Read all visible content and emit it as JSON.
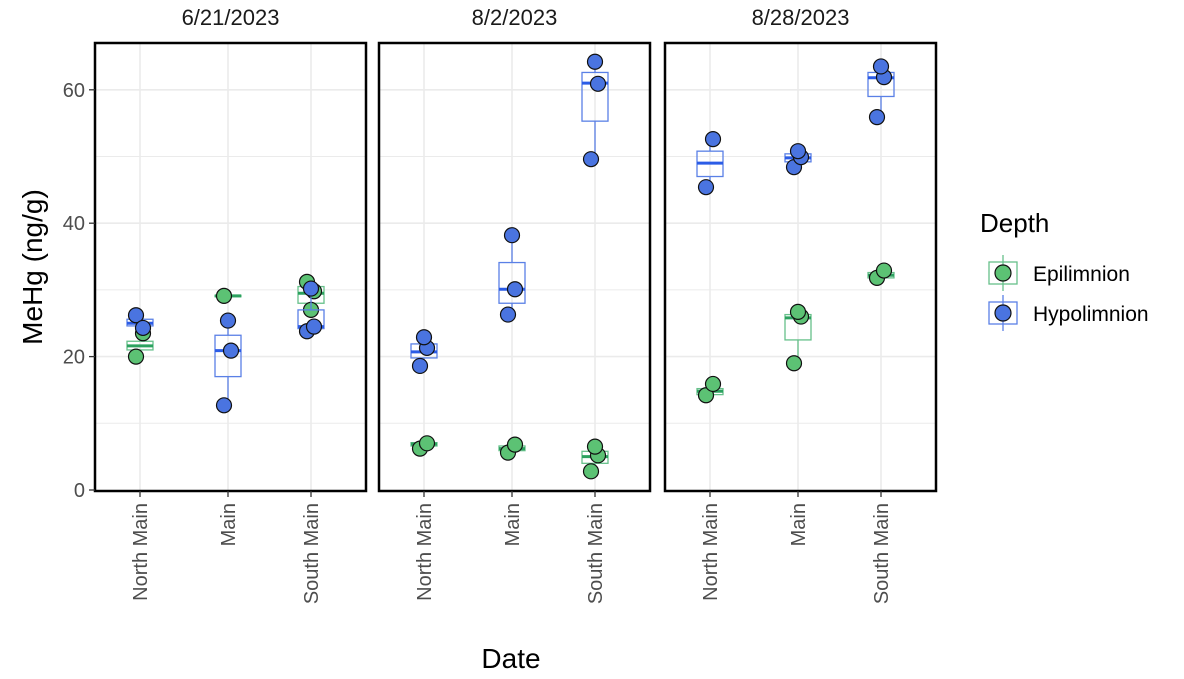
{
  "chart_data": {
    "type": "box",
    "xlabel": "Date",
    "ylabel": "MeHg (ng/g)",
    "ylim": [
      0,
      67
    ],
    "yticks": [
      0,
      20,
      40,
      60
    ],
    "grid": true,
    "categories": [
      "North Main",
      "Main",
      "South Main"
    ],
    "facets": [
      "6/21/2023",
      "8/2/2023",
      "8/28/2023"
    ],
    "legend": {
      "title": "Depth",
      "position": "right",
      "entries": [
        "Epilimnion",
        "Hypolimnion"
      ]
    },
    "series": [
      {
        "name": "Epilimnion",
        "color": "#2ca25f",
        "box_stroke": "#66c08a",
        "point_fill": "#5cc274",
        "groups": [
          {
            "facet": "6/21/2023",
            "category": "North Main",
            "box": [
              21.0,
              21.6,
              22.3
            ],
            "points": [
              20.0,
              23.5
            ]
          },
          {
            "facet": "6/21/2023",
            "category": "Main",
            "box": [
              29.0,
              29.1,
              29.2
            ],
            "points": [
              29.1
            ]
          },
          {
            "facet": "6/21/2023",
            "category": "South Main",
            "box": [
              28.0,
              29.5,
              30.5
            ],
            "points": [
              31.2,
              29.8,
              27.0
            ]
          },
          {
            "facet": "8/2/2023",
            "category": "North Main",
            "box": [
              6.6,
              6.9,
              7.1
            ],
            "points": [
              6.2,
              7.0
            ]
          },
          {
            "facet": "8/2/2023",
            "category": "Main",
            "box": [
              5.9,
              6.2,
              6.6
            ],
            "points": [
              5.6,
              6.8
            ]
          },
          {
            "facet": "8/2/2023",
            "category": "South Main",
            "box": [
              4.0,
              5.0,
              5.8
            ],
            "points": [
              2.8,
              5.2,
              6.5
            ]
          },
          {
            "facet": "8/28/2023",
            "category": "North Main",
            "box": [
              14.3,
              14.8,
              15.2
            ],
            "points": [
              14.2,
              15.9
            ]
          },
          {
            "facet": "8/28/2023",
            "category": "Main",
            "box": [
              22.5,
              25.8,
              26.3
            ],
            "points": [
              19.0,
              26.0,
              26.7
            ]
          },
          {
            "facet": "8/28/2023",
            "category": "South Main",
            "box": [
              31.8,
              32.2,
              32.6
            ],
            "points": [
              31.8,
              32.9
            ]
          }
        ]
      },
      {
        "name": "Hypolimnion",
        "color": "#2b5ce6",
        "box_stroke": "#5a80e6",
        "point_fill": "#4a74e0",
        "groups": [
          {
            "facet": "6/21/2023",
            "category": "North Main",
            "box": [
              24.6,
              25.0,
              25.6
            ],
            "points": [
              26.2,
              24.3
            ]
          },
          {
            "facet": "6/21/2023",
            "category": "Main",
            "box": [
              17.0,
              20.9,
              23.2
            ],
            "points": [
              12.7,
              20.9,
              25.4
            ]
          },
          {
            "facet": "6/21/2023",
            "category": "South Main",
            "box": [
              24.2,
              24.5,
              27.0
            ],
            "points": [
              23.8,
              24.5,
              30.2
            ]
          },
          {
            "facet": "8/2/2023",
            "category": "North Main",
            "box": [
              19.8,
              20.7,
              21.9
            ],
            "points": [
              18.6,
              21.3,
              22.9
            ]
          },
          {
            "facet": "8/2/2023",
            "category": "Main",
            "box": [
              28.0,
              30.1,
              34.1
            ],
            "points": [
              26.3,
              30.1,
              38.2
            ]
          },
          {
            "facet": "8/2/2023",
            "category": "South Main",
            "box": [
              55.3,
              61.0,
              62.6
            ],
            "points": [
              49.6,
              60.9,
              64.2
            ]
          },
          {
            "facet": "8/28/2023",
            "category": "North Main",
            "box": [
              47.0,
              49.0,
              50.8
            ],
            "points": [
              45.4,
              52.6
            ]
          },
          {
            "facet": "8/28/2023",
            "category": "Main",
            "box": [
              49.2,
              49.8,
              50.4
            ],
            "points": [
              48.4,
              49.9,
              50.8
            ]
          },
          {
            "facet": "8/28/2023",
            "category": "South Main",
            "box": [
              59.0,
              61.8,
              62.6
            ],
            "points": [
              55.9,
              61.9,
              63.5
            ]
          }
        ]
      }
    ]
  }
}
